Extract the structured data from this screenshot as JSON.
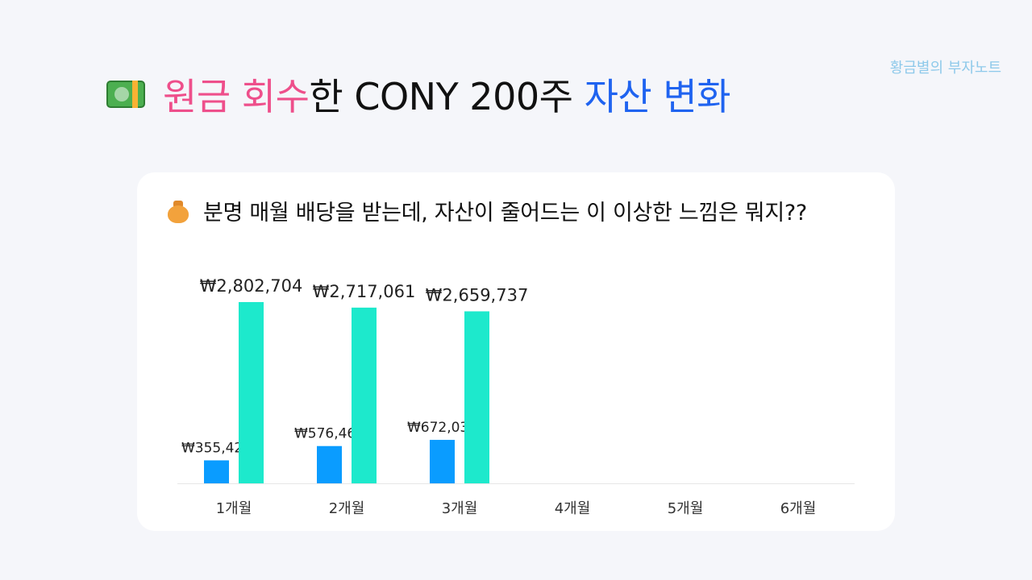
{
  "brand": "황금별의 부자노트",
  "title": {
    "icon": "money-bill-icon",
    "part1": "원금 회수",
    "part2": "한 CONY 200주 ",
    "part3": "자산 변화",
    "colors": {
      "pink": "#ee4f8b",
      "black": "#111111",
      "blue": "#1f63f0"
    }
  },
  "card": {
    "icon": "money-bag-icon",
    "subtitle": "분명 매월 배당을 받는데, 자산이 줄어드는 이 이상한 느낌은 뭐지??"
  },
  "chart_data": {
    "type": "bar",
    "categories": [
      "1개월",
      "2개월",
      "3개월",
      "4개월",
      "5개월",
      "6개월"
    ],
    "series": [
      {
        "color": "#0a9cff",
        "values": [
          355423,
          576461,
          672037,
          null,
          null,
          null
        ],
        "labels": [
          "₩355,423",
          "₩576,461",
          "₩672,037",
          "",
          "",
          ""
        ]
      },
      {
        "color": "#1de9cc",
        "values": [
          2802704,
          2717061,
          2659737,
          null,
          null,
          null
        ],
        "labels": [
          "₩2,802,704",
          "₩2,717,061",
          "₩2,659,737",
          "",
          "",
          ""
        ]
      }
    ],
    "ylim": [
      0,
      2802704
    ],
    "grid": false,
    "legend": "none"
  }
}
